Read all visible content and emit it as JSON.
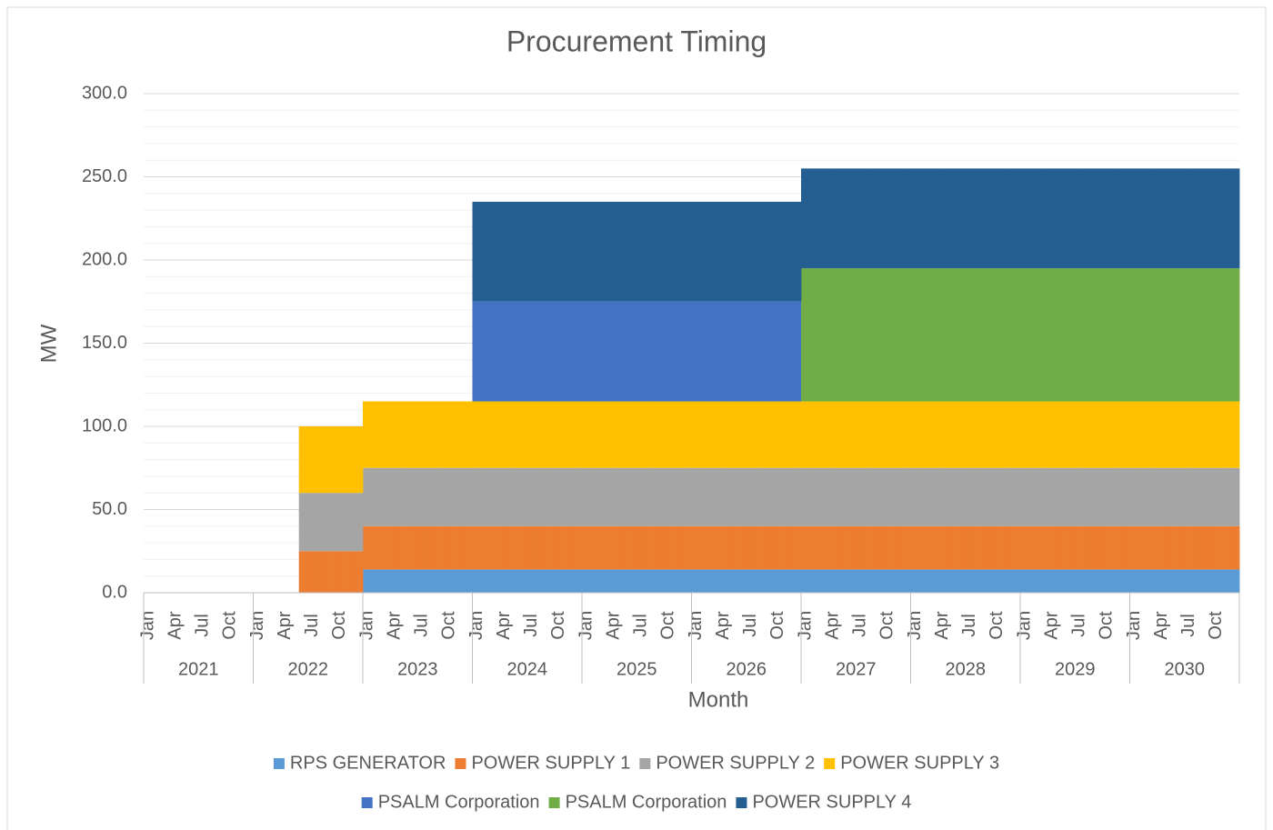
{
  "chart_data": {
    "type": "stacked_area_step",
    "title": "Procurement Timing",
    "x_label": "Month",
    "y_label": "MW",
    "categories": [
      "Jan",
      null,
      null,
      "Apr",
      null,
      null,
      "Jul",
      null,
      null,
      "Oct",
      null,
      null,
      "Jan",
      null,
      null,
      "Apr",
      null,
      null,
      "Jul",
      null,
      null,
      "Oct",
      null,
      null,
      "Jan",
      null,
      null,
      "Apr",
      null,
      null,
      "Jul",
      null,
      null,
      "Oct",
      null,
      null,
      "Jan",
      null,
      null,
      "Apr",
      null,
      null,
      "Jul",
      null,
      null,
      "Oct",
      null,
      null,
      "Jan",
      null,
      null,
      "Apr",
      null,
      null,
      "Jul",
      null,
      null,
      "Oct",
      null,
      null,
      "Jan",
      null,
      null,
      "Apr",
      null,
      null,
      "Jul",
      null,
      null,
      "Oct",
      null,
      null,
      "Jan",
      null,
      null,
      "Apr",
      null,
      null,
      "Jul",
      null,
      null,
      "Oct",
      null,
      null,
      "Jan",
      null,
      null,
      "Apr",
      null,
      null,
      "Jul",
      null,
      null,
      "Oct",
      null,
      null,
      "Jan",
      null,
      null,
      "Apr",
      null,
      null,
      "Jul",
      null,
      null,
      "Oct",
      null,
      null,
      "Jan",
      null,
      null,
      "Apr",
      null,
      null,
      "Jul",
      null,
      null,
      "Oct",
      null,
      null
    ],
    "x_groups": [
      "2021",
      "2022",
      "2023",
      "2024",
      "2025",
      "2026",
      "2027",
      "2028",
      "2029",
      "2030"
    ],
    "series": [
      {
        "name": "RPS GENERATOR",
        "color": "#5b9bd5",
        "values": [
          0,
          0,
          0,
          0,
          0,
          0,
          0,
          0,
          0,
          0,
          0,
          0,
          0,
          0,
          0,
          0,
          0,
          0,
          0,
          0,
          0,
          0,
          0,
          0,
          14,
          14,
          14,
          14,
          14,
          14,
          14,
          14,
          14,
          14,
          14,
          14,
          14,
          14,
          14,
          14,
          14,
          14,
          14,
          14,
          14,
          14,
          14,
          14,
          14,
          14,
          14,
          14,
          14,
          14,
          14,
          14,
          14,
          14,
          14,
          14,
          14,
          14,
          14,
          14,
          14,
          14,
          14,
          14,
          14,
          14,
          14,
          14,
          14,
          14,
          14,
          14,
          14,
          14,
          14,
          14,
          14,
          14,
          14,
          14,
          14,
          14,
          14,
          14,
          14,
          14,
          14,
          14,
          14,
          14,
          14,
          14,
          14,
          14,
          14,
          14,
          14,
          14,
          14,
          14,
          14,
          14,
          14,
          14,
          14,
          14,
          14,
          14,
          14,
          14,
          14,
          14,
          14,
          14,
          14,
          14
        ]
      },
      {
        "name": "POWER SUPPLY 1",
        "color": "#ed7d31",
        "values": [
          0,
          0,
          0,
          0,
          0,
          0,
          0,
          0,
          0,
          0,
          0,
          0,
          0,
          0,
          0,
          0,
          0,
          25,
          25,
          25,
          25,
          25,
          25,
          25,
          26,
          26,
          26,
          26,
          26,
          26,
          26,
          26,
          26,
          26,
          26,
          26,
          26,
          26,
          26,
          26,
          26,
          26,
          26,
          26,
          26,
          26,
          26,
          26,
          26,
          26,
          26,
          26,
          26,
          26,
          26,
          26,
          26,
          26,
          26,
          26,
          26,
          26,
          26,
          26,
          26,
          26,
          26,
          26,
          26,
          26,
          26,
          26,
          26,
          26,
          26,
          26,
          26,
          26,
          26,
          26,
          26,
          26,
          26,
          26,
          26,
          26,
          26,
          26,
          26,
          26,
          26,
          26,
          26,
          26,
          26,
          26,
          26,
          26,
          26,
          26,
          26,
          26,
          26,
          26,
          26,
          26,
          26,
          26,
          26,
          26,
          26,
          26,
          26,
          26,
          26,
          26,
          26,
          26,
          26,
          26
        ]
      },
      {
        "name": "POWER SUPPLY 2",
        "color": "#a5a5a5",
        "values": [
          0,
          0,
          0,
          0,
          0,
          0,
          0,
          0,
          0,
          0,
          0,
          0,
          0,
          0,
          0,
          0,
          0,
          35,
          35,
          35,
          35,
          35,
          35,
          35,
          35,
          35,
          35,
          35,
          35,
          35,
          35,
          35,
          35,
          35,
          35,
          35,
          35,
          35,
          35,
          35,
          35,
          35,
          35,
          35,
          35,
          35,
          35,
          35,
          35,
          35,
          35,
          35,
          35,
          35,
          35,
          35,
          35,
          35,
          35,
          35,
          35,
          35,
          35,
          35,
          35,
          35,
          35,
          35,
          35,
          35,
          35,
          35,
          35,
          35,
          35,
          35,
          35,
          35,
          35,
          35,
          35,
          35,
          35,
          35,
          35,
          35,
          35,
          35,
          35,
          35,
          35,
          35,
          35,
          35,
          35,
          35,
          35,
          35,
          35,
          35,
          35,
          35,
          35,
          35,
          35,
          35,
          35,
          35,
          35,
          35,
          35,
          35,
          35,
          35,
          35,
          35,
          35,
          35,
          35,
          35
        ]
      },
      {
        "name": "POWER SUPPLY 3",
        "color": "#ffc000",
        "values": [
          0,
          0,
          0,
          0,
          0,
          0,
          0,
          0,
          0,
          0,
          0,
          0,
          0,
          0,
          0,
          0,
          0,
          40,
          40,
          40,
          40,
          40,
          40,
          40,
          40,
          40,
          40,
          40,
          40,
          40,
          40,
          40,
          40,
          40,
          40,
          40,
          40,
          40,
          40,
          40,
          40,
          40,
          40,
          40,
          40,
          40,
          40,
          40,
          40,
          40,
          40,
          40,
          40,
          40,
          40,
          40,
          40,
          40,
          40,
          40,
          40,
          40,
          40,
          40,
          40,
          40,
          40,
          40,
          40,
          40,
          40,
          40,
          40,
          40,
          40,
          40,
          40,
          40,
          40,
          40,
          40,
          40,
          40,
          40,
          40,
          40,
          40,
          40,
          40,
          40,
          40,
          40,
          40,
          40,
          40,
          40,
          40,
          40,
          40,
          40,
          40,
          40,
          40,
          40,
          40,
          40,
          40,
          40,
          40,
          40,
          40,
          40,
          40,
          40,
          40,
          40,
          40,
          40,
          40,
          40
        ]
      },
      {
        "name": "PSALM Corporation",
        "color": "#4472c4",
        "values": [
          0,
          0,
          0,
          0,
          0,
          0,
          0,
          0,
          0,
          0,
          0,
          0,
          0,
          0,
          0,
          0,
          0,
          0,
          0,
          0,
          0,
          0,
          0,
          0,
          0,
          0,
          0,
          0,
          0,
          0,
          0,
          0,
          0,
          0,
          0,
          0,
          60,
          60,
          60,
          60,
          60,
          60,
          60,
          60,
          60,
          60,
          60,
          60,
          60,
          60,
          60,
          60,
          60,
          60,
          60,
          60,
          60,
          60,
          60,
          60,
          60,
          60,
          60,
          60,
          60,
          60,
          60,
          60,
          60,
          60,
          60,
          60,
          0,
          0,
          0,
          0,
          0,
          0,
          0,
          0,
          0,
          0,
          0,
          0,
          0,
          0,
          0,
          0,
          0,
          0,
          0,
          0,
          0,
          0,
          0,
          0,
          0,
          0,
          0,
          0,
          0,
          0,
          0,
          0,
          0,
          0,
          0,
          0,
          0,
          0,
          0,
          0,
          0,
          0,
          0,
          0,
          0,
          0,
          0,
          0
        ]
      },
      {
        "name": "PSALM Corporation",
        "color": "#70ad47",
        "values": [
          0,
          0,
          0,
          0,
          0,
          0,
          0,
          0,
          0,
          0,
          0,
          0,
          0,
          0,
          0,
          0,
          0,
          0,
          0,
          0,
          0,
          0,
          0,
          0,
          0,
          0,
          0,
          0,
          0,
          0,
          0,
          0,
          0,
          0,
          0,
          0,
          0,
          0,
          0,
          0,
          0,
          0,
          0,
          0,
          0,
          0,
          0,
          0,
          0,
          0,
          0,
          0,
          0,
          0,
          0,
          0,
          0,
          0,
          0,
          0,
          0,
          0,
          0,
          0,
          0,
          0,
          0,
          0,
          0,
          0,
          0,
          0,
          80,
          80,
          80,
          80,
          80,
          80,
          80,
          80,
          80,
          80,
          80,
          80,
          80,
          80,
          80,
          80,
          80,
          80,
          80,
          80,
          80,
          80,
          80,
          80,
          80,
          80,
          80,
          80,
          80,
          80,
          80,
          80,
          80,
          80,
          80,
          80,
          80,
          80,
          80,
          80,
          80,
          80,
          80,
          80,
          80,
          80,
          80,
          80
        ]
      },
      {
        "name": "POWER SUPPLY 4",
        "color": "#255e91",
        "values": [
          0,
          0,
          0,
          0,
          0,
          0,
          0,
          0,
          0,
          0,
          0,
          0,
          0,
          0,
          0,
          0,
          0,
          0,
          0,
          0,
          0,
          0,
          0,
          0,
          0,
          0,
          0,
          0,
          0,
          0,
          0,
          0,
          0,
          0,
          0,
          0,
          60,
          60,
          60,
          60,
          60,
          60,
          60,
          60,
          60,
          60,
          60,
          60,
          60,
          60,
          60,
          60,
          60,
          60,
          60,
          60,
          60,
          60,
          60,
          60,
          60,
          60,
          60,
          60,
          60,
          60,
          60,
          60,
          60,
          60,
          60,
          60,
          60,
          60,
          60,
          60,
          60,
          60,
          60,
          60,
          60,
          60,
          60,
          60,
          60,
          60,
          60,
          60,
          60,
          60,
          60,
          60,
          60,
          60,
          60,
          60,
          60,
          60,
          60,
          60,
          60,
          60,
          60,
          60,
          60,
          60,
          60,
          60,
          60,
          60,
          60,
          60,
          60,
          60,
          60,
          60,
          60,
          60,
          60,
          60
        ]
      }
    ],
    "ylim": [
      0,
      300
    ],
    "yticks": [
      {
        "value": 0,
        "label": "0.0"
      },
      {
        "value": 50,
        "label": "50.0"
      },
      {
        "value": 100,
        "label": "100.0"
      },
      {
        "value": 150,
        "label": "150.0"
      },
      {
        "value": 200,
        "label": "200.0"
      },
      {
        "value": 250,
        "label": "250.0"
      },
      {
        "value": 300,
        "label": "300.0"
      }
    ],
    "yminor_ticks": [
      10,
      20,
      30,
      40,
      60,
      70,
      80,
      90,
      110,
      120,
      130,
      140,
      160,
      170,
      180,
      190,
      210,
      220,
      230,
      240,
      260,
      270,
      280,
      290
    ],
    "grid": true,
    "legend": "bottom"
  }
}
